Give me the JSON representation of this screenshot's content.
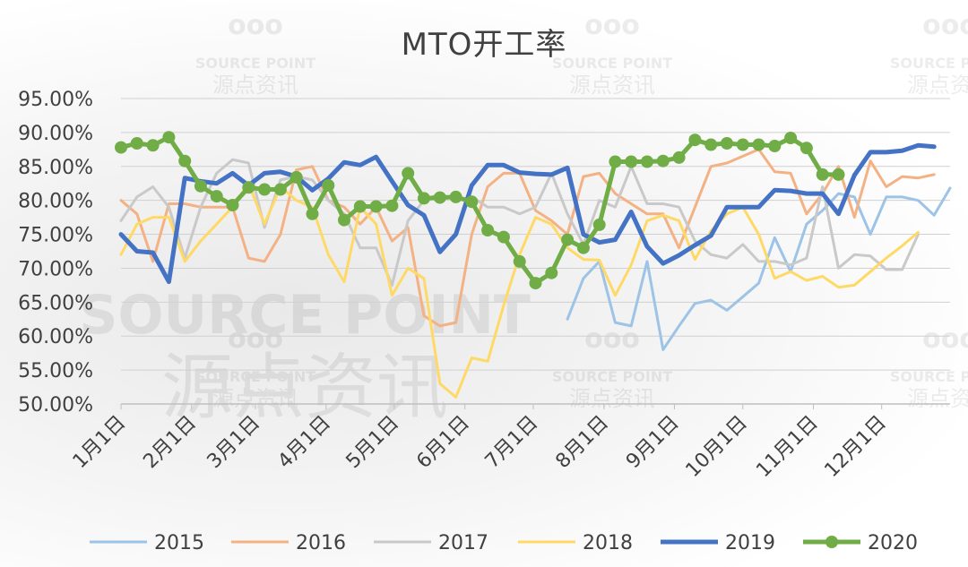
{
  "watermark": {
    "logo": "ooo",
    "brand_en": "SOURCE POINT",
    "brand_cn": "源点资讯"
  },
  "chart_data": {
    "type": "line",
    "title": "MTO开工率",
    "xlabel": "",
    "ylabel": "",
    "ylim": [
      50,
      95
    ],
    "y_ticks": [
      "50.00%",
      "55.00%",
      "60.00%",
      "65.00%",
      "70.00%",
      "75.00%",
      "80.00%",
      "85.00%",
      "90.00%",
      "95.00%"
    ],
    "x_range": [
      1,
      53
    ],
    "x_ticks": [
      {
        "label": "1月1日",
        "week": 1
      },
      {
        "label": "2月1日",
        "week": 5.43
      },
      {
        "label": "3月1日",
        "week": 9.43
      },
      {
        "label": "4月1日",
        "week": 13.86
      },
      {
        "label": "5月1日",
        "week": 18.14
      },
      {
        "label": "6月1日",
        "week": 22.57
      },
      {
        "label": "7月1日",
        "week": 26.86
      },
      {
        "label": "8月1日",
        "week": 31.29
      },
      {
        "label": "9月1日",
        "week": 35.71
      },
      {
        "label": "10月1日",
        "week": 40
      },
      {
        "label": "11月1日",
        "week": 44.43
      },
      {
        "label": "12月1日",
        "week": 48.71
      }
    ],
    "grid": true,
    "legend_position": "bottom",
    "series": [
      {
        "name": "2015",
        "color": "#9dc3e6",
        "width": 3,
        "markers": false,
        "points": [
          [
            29,
            62.5
          ],
          [
            30,
            68.5
          ],
          [
            31,
            71
          ],
          [
            32,
            62
          ],
          [
            33,
            61.5
          ],
          [
            34,
            71
          ],
          [
            35,
            58
          ],
          [
            36,
            61.5
          ],
          [
            37,
            64.8
          ],
          [
            38,
            65.3
          ],
          [
            39,
            63.8
          ],
          [
            40,
            65.8
          ],
          [
            41,
            67.8
          ],
          [
            42,
            74.5
          ],
          [
            43,
            69.5
          ],
          [
            44,
            76.5
          ],
          [
            45,
            78.5
          ],
          [
            46,
            81
          ],
          [
            47,
            80.5
          ],
          [
            48,
            75
          ],
          [
            49,
            80.5
          ],
          [
            50,
            80.5
          ],
          [
            51,
            80
          ],
          [
            52,
            77.8
          ],
          [
            53,
            81.8
          ]
        ]
      },
      {
        "name": "2016",
        "color": "#f4b183",
        "width": 3,
        "markers": false,
        "points": [
          [
            1,
            80
          ],
          [
            2,
            78
          ],
          [
            3,
            71
          ],
          [
            4,
            79.5
          ],
          [
            5,
            79.5
          ],
          [
            6,
            79
          ],
          [
            7,
            79
          ],
          [
            8,
            79
          ],
          [
            9,
            71.5
          ],
          [
            10,
            71
          ],
          [
            11,
            75
          ],
          [
            12,
            84.5
          ],
          [
            13,
            85
          ],
          [
            14,
            80
          ],
          [
            15,
            79
          ],
          [
            16,
            76.5
          ],
          [
            17,
            79
          ],
          [
            18,
            74
          ],
          [
            19,
            76
          ],
          [
            20,
            63
          ],
          [
            21,
            61.5
          ],
          [
            22,
            62
          ],
          [
            23,
            75
          ],
          [
            24,
            82
          ],
          [
            25,
            84
          ],
          [
            26,
            84
          ],
          [
            27,
            78.5
          ],
          [
            28,
            77
          ],
          [
            29,
            75
          ],
          [
            30,
            83.5
          ],
          [
            31,
            84
          ],
          [
            32,
            81
          ],
          [
            33,
            79.5
          ],
          [
            34,
            78
          ],
          [
            35,
            78
          ],
          [
            36,
            73
          ],
          [
            37,
            79
          ],
          [
            38,
            85
          ],
          [
            39,
            85.5
          ],
          [
            40,
            86.5
          ],
          [
            41,
            87.5
          ],
          [
            42,
            84.2
          ],
          [
            43,
            84
          ],
          [
            44,
            78
          ],
          [
            45,
            81
          ],
          [
            46,
            85
          ],
          [
            47,
            77.5
          ],
          [
            48,
            85.8
          ],
          [
            49,
            82
          ],
          [
            50,
            83.5
          ],
          [
            51,
            83.3
          ],
          [
            52,
            83.8
          ]
        ]
      },
      {
        "name": "2017",
        "color": "#c9c9c9",
        "width": 3,
        "markers": false,
        "points": [
          [
            1,
            77
          ],
          [
            2,
            80.5
          ],
          [
            3,
            82
          ],
          [
            4,
            79
          ],
          [
            5,
            71.5
          ],
          [
            6,
            79
          ],
          [
            7,
            84
          ],
          [
            8,
            86
          ],
          [
            9,
            85.5
          ],
          [
            10,
            76
          ],
          [
            11,
            83
          ],
          [
            12,
            83.5
          ],
          [
            13,
            83
          ],
          [
            14,
            80
          ],
          [
            15,
            78
          ],
          [
            16,
            73
          ],
          [
            17,
            73
          ],
          [
            18,
            67.5
          ],
          [
            19,
            77
          ],
          [
            20,
            80
          ],
          [
            21,
            81
          ],
          [
            22,
            80
          ],
          [
            23,
            80.5
          ],
          [
            24,
            79
          ],
          [
            25,
            79
          ],
          [
            26,
            78
          ],
          [
            27,
            79
          ],
          [
            28,
            84
          ],
          [
            29,
            78
          ],
          [
            30,
            73.5
          ],
          [
            31,
            80
          ],
          [
            32,
            79
          ],
          [
            33,
            85
          ],
          [
            34,
            79.5
          ],
          [
            35,
            79.5
          ],
          [
            36,
            79
          ],
          [
            37,
            74
          ],
          [
            38,
            72
          ],
          [
            39,
            71.5
          ],
          [
            40,
            73.5
          ],
          [
            41,
            71
          ],
          [
            42,
            71
          ],
          [
            43,
            70.5
          ],
          [
            44,
            71.5
          ],
          [
            45,
            82
          ],
          [
            46,
            70
          ],
          [
            47,
            72
          ],
          [
            48,
            71.8
          ],
          [
            49,
            69.8
          ],
          [
            50,
            69.8
          ],
          [
            51,
            75
          ]
        ]
      },
      {
        "name": "2018",
        "color": "#ffd966",
        "width": 3,
        "markers": false,
        "points": [
          [
            1,
            72
          ],
          [
            2,
            76.5
          ],
          [
            3,
            77.5
          ],
          [
            4,
            77.5
          ],
          [
            5,
            71
          ],
          [
            6,
            74
          ],
          [
            7,
            76.5
          ],
          [
            8,
            79
          ],
          [
            9,
            82.5
          ],
          [
            10,
            76.5
          ],
          [
            11,
            82
          ],
          [
            12,
            80
          ],
          [
            13,
            79
          ],
          [
            14,
            72
          ],
          [
            15,
            68
          ],
          [
            16,
            79
          ],
          [
            17,
            76.5
          ],
          [
            18,
            66
          ],
          [
            19,
            70
          ],
          [
            20,
            68.5
          ],
          [
            21,
            53
          ],
          [
            22,
            51
          ],
          [
            23,
            56.8
          ],
          [
            24,
            56.3
          ],
          [
            25,
            64.5
          ],
          [
            26,
            72
          ],
          [
            27,
            77.5
          ],
          [
            28,
            76.5
          ],
          [
            29,
            73
          ],
          [
            30,
            71.3
          ],
          [
            31,
            71.2
          ],
          [
            32,
            66
          ],
          [
            33,
            70.5
          ],
          [
            34,
            77
          ],
          [
            35,
            77.8
          ],
          [
            36,
            77
          ],
          [
            37,
            71.3
          ],
          [
            38,
            75.5
          ],
          [
            39,
            78
          ],
          [
            40,
            79
          ],
          [
            41,
            75
          ],
          [
            42,
            68.5
          ],
          [
            43,
            69.5
          ],
          [
            44,
            68.2
          ],
          [
            45,
            68.8
          ],
          [
            46,
            67.2
          ],
          [
            47,
            67.5
          ],
          [
            48,
            69.5
          ],
          [
            49,
            71.5
          ],
          [
            50,
            73.3
          ],
          [
            51,
            75.3
          ]
        ]
      },
      {
        "name": "2019",
        "color": "#4472c4",
        "width": 5,
        "markers": false,
        "points": [
          [
            1,
            75
          ],
          [
            2,
            72.5
          ],
          [
            3,
            72.3
          ],
          [
            4,
            68
          ],
          [
            5,
            83.3
          ],
          [
            6,
            82.8
          ],
          [
            7,
            82.5
          ],
          [
            8,
            84
          ],
          [
            9,
            82.2
          ],
          [
            10,
            84
          ],
          [
            11,
            84.2
          ],
          [
            12,
            83.5
          ],
          [
            13,
            81.5
          ],
          [
            14,
            83.2
          ],
          [
            15,
            85.6
          ],
          [
            16,
            85.2
          ],
          [
            17,
            86.4
          ],
          [
            18,
            82.8
          ],
          [
            19,
            79.3
          ],
          [
            20,
            77.8
          ],
          [
            21,
            72.4
          ],
          [
            22,
            75
          ],
          [
            23,
            82.2
          ],
          [
            24,
            85.2
          ],
          [
            25,
            85.2
          ],
          [
            26,
            84.1
          ],
          [
            27,
            83.9
          ],
          [
            28,
            83.8
          ],
          [
            29,
            84.8
          ],
          [
            30,
            75
          ],
          [
            31,
            73.8
          ],
          [
            32,
            74.2
          ],
          [
            33,
            78.3
          ],
          [
            34,
            73.2
          ],
          [
            35,
            70.7
          ],
          [
            36,
            71.9
          ],
          [
            37,
            73.4
          ],
          [
            38,
            74.8
          ],
          [
            39,
            79
          ],
          [
            40,
            79
          ],
          [
            41,
            79
          ],
          [
            42,
            81.5
          ],
          [
            43,
            81.4
          ],
          [
            44,
            81
          ],
          [
            45,
            81
          ],
          [
            46,
            78
          ],
          [
            47,
            83.7
          ],
          [
            48,
            87.1
          ],
          [
            49,
            87.1
          ],
          [
            50,
            87.3
          ],
          [
            51,
            88.1
          ],
          [
            52,
            87.9
          ]
        ]
      },
      {
        "name": "2020",
        "color": "#70ad47",
        "width": 5,
        "markers": true,
        "points": [
          [
            1,
            87.8
          ],
          [
            2,
            88.4
          ],
          [
            3,
            88.1
          ],
          [
            4,
            89.3
          ],
          [
            5,
            85.8
          ],
          [
            6,
            82.1
          ],
          [
            7,
            80.6
          ],
          [
            8,
            79.3
          ],
          [
            9,
            81.9
          ],
          [
            10,
            81.6
          ],
          [
            11,
            81.6
          ],
          [
            12,
            83.4
          ],
          [
            13,
            78
          ],
          [
            14,
            82.2
          ],
          [
            15,
            77.1
          ],
          [
            16,
            79.1
          ],
          [
            17,
            79.1
          ],
          [
            18,
            79.2
          ],
          [
            19,
            84
          ],
          [
            20,
            80.3
          ],
          [
            21,
            80.4
          ],
          [
            22,
            80.5
          ],
          [
            23,
            79.8
          ],
          [
            24,
            75.6
          ],
          [
            25,
            74.6
          ],
          [
            26,
            71
          ],
          [
            27,
            67.8
          ],
          [
            28,
            69.3
          ],
          [
            29,
            74.2
          ],
          [
            30,
            73
          ],
          [
            31,
            76.4
          ],
          [
            32,
            85.7
          ],
          [
            33,
            85.7
          ],
          [
            34,
            85.7
          ],
          [
            35,
            85.8
          ],
          [
            36,
            86.3
          ],
          [
            37,
            88.9
          ],
          [
            38,
            88.2
          ],
          [
            39,
            88.4
          ],
          [
            40,
            88.2
          ],
          [
            41,
            88.2
          ],
          [
            42,
            88
          ],
          [
            43,
            89.2
          ],
          [
            44,
            87.7
          ],
          [
            45,
            83.8
          ],
          [
            46,
            83.8
          ]
        ]
      }
    ]
  }
}
